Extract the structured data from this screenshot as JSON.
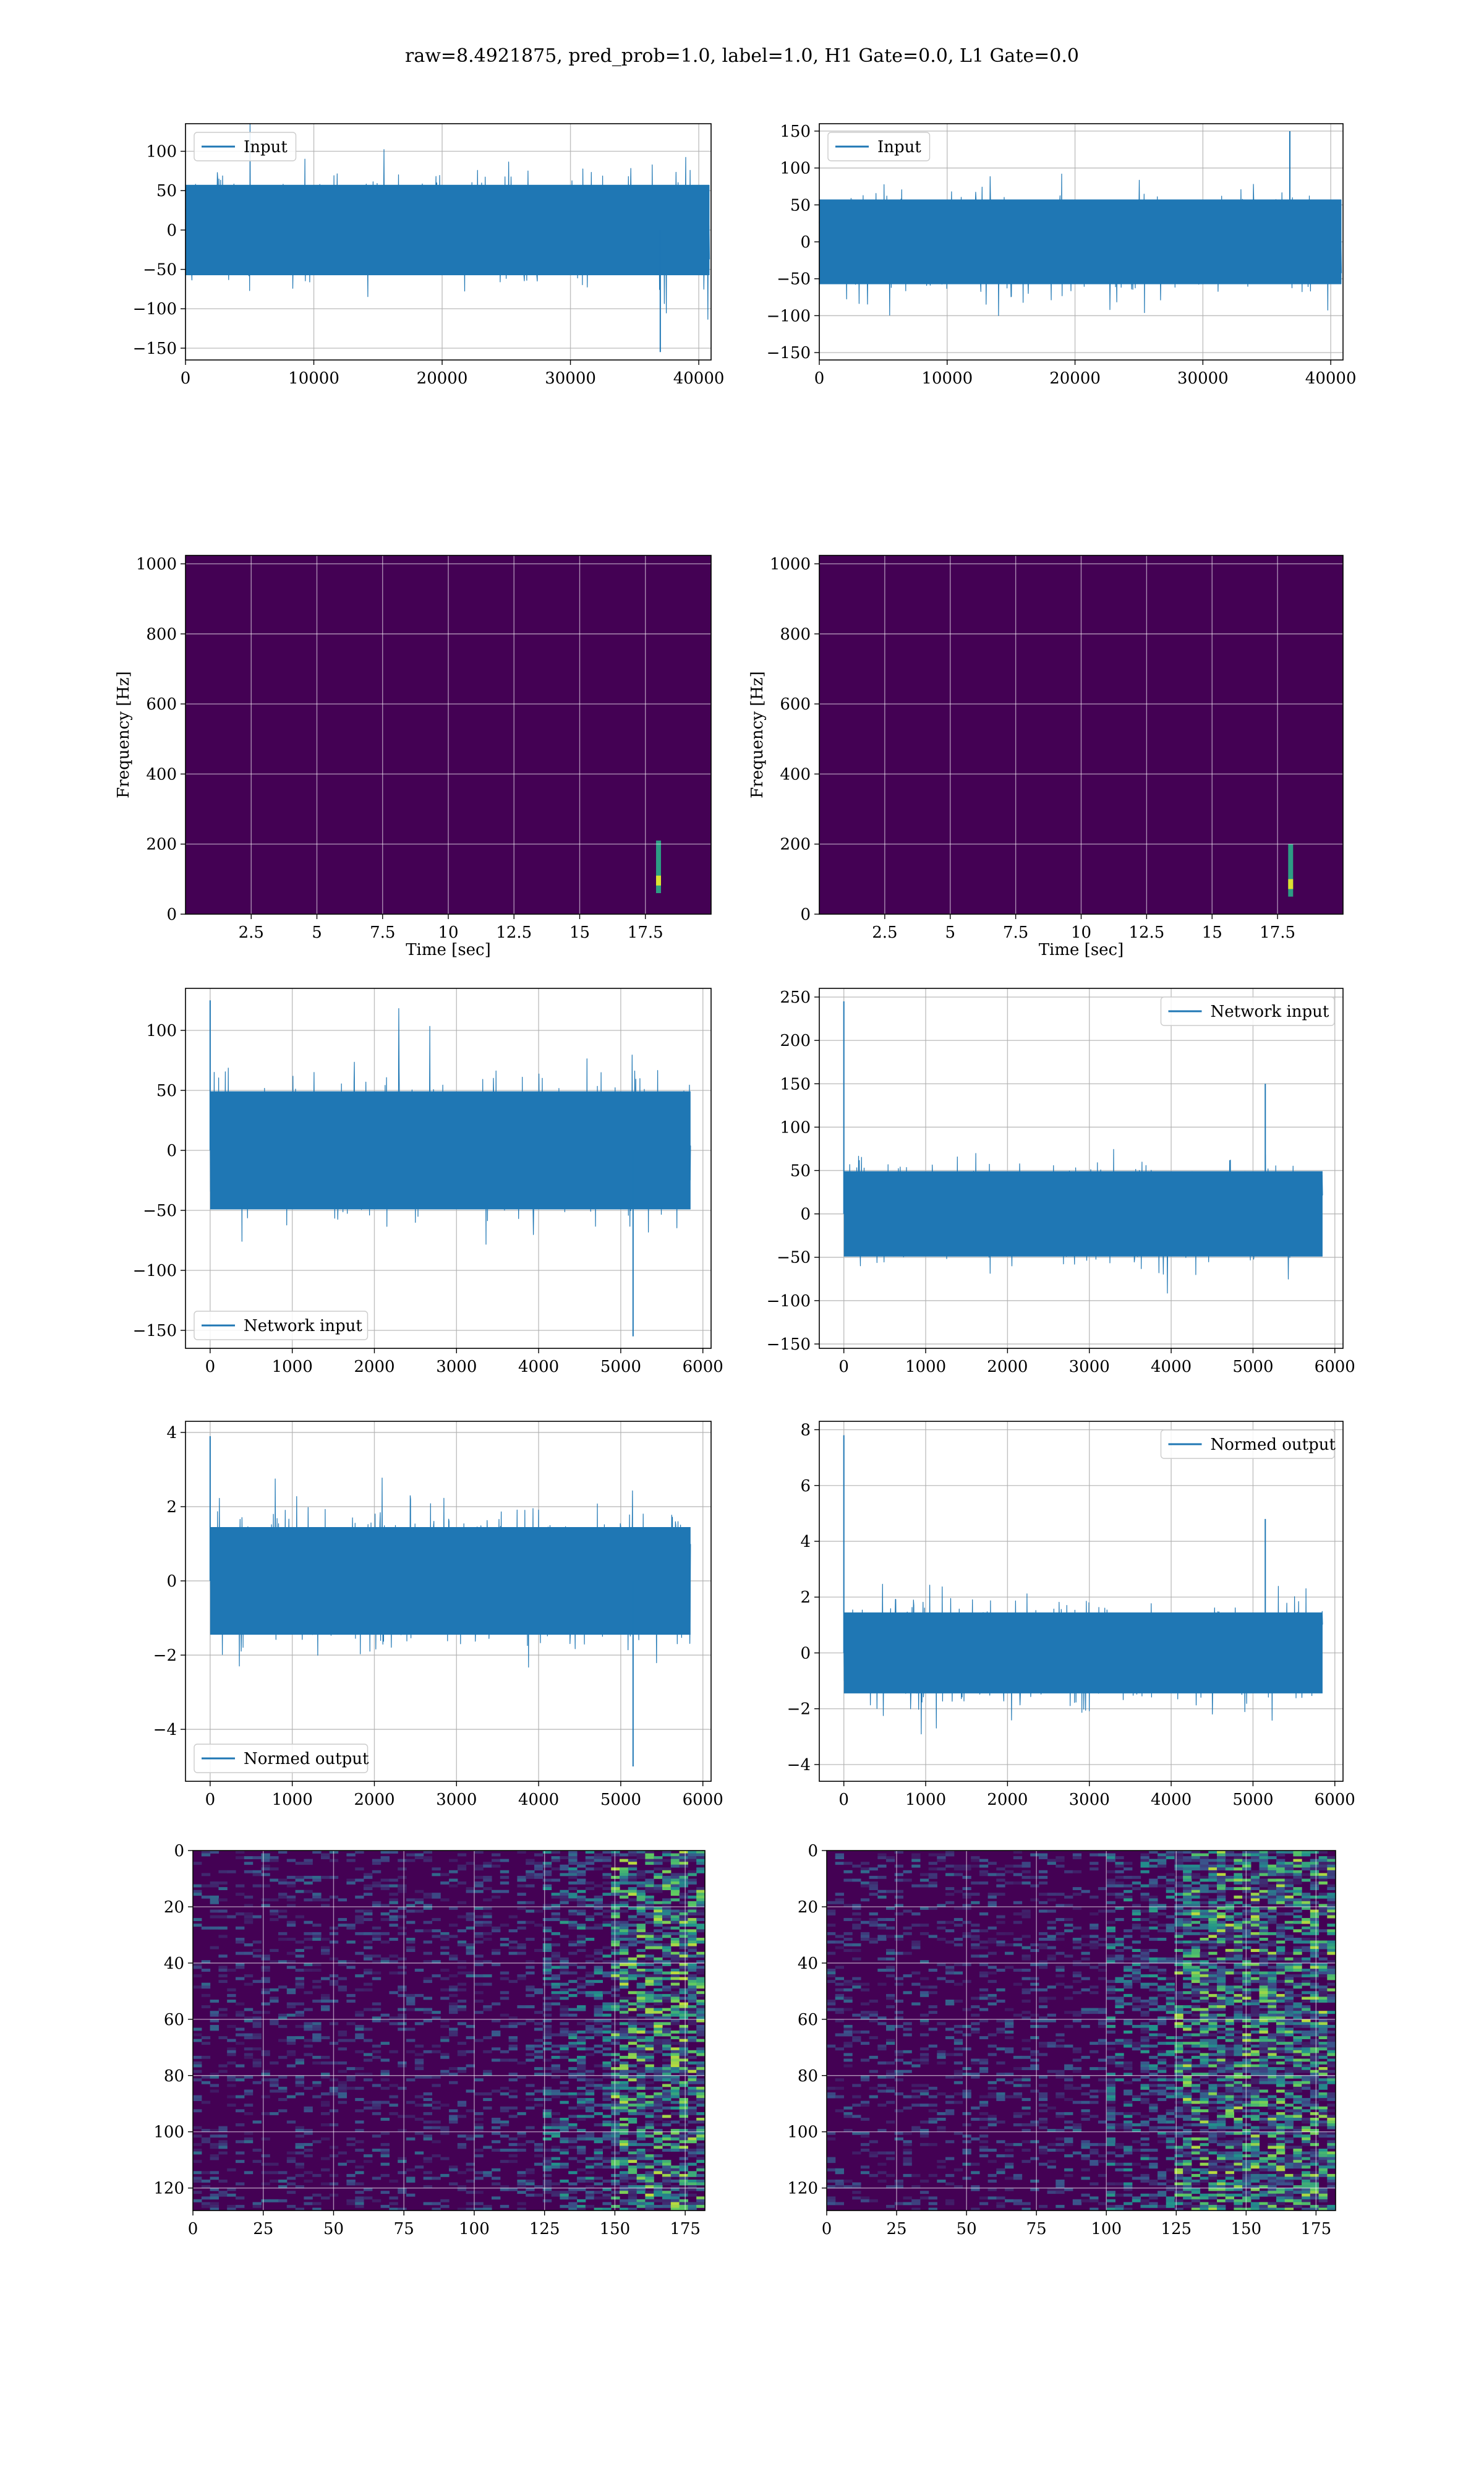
{
  "suptitle": "raw=8.4921875, pred_prob=1.0, label=1.0, H1 Gate=0.0, L1 Gate=0.0",
  "colors": {
    "line": "#1f77b4",
    "grid": "#b0b0b0",
    "viridis_low": "#440154",
    "viridis_high": "#fde725"
  },
  "chart_data": [
    {
      "id": "input_h1",
      "type": "line",
      "series": [
        {
          "name": "Input",
          "summary": "whitened strain noise, mostly within ±90, extremes ≈ +125 / −155"
        }
      ],
      "xlim": [
        0,
        40960
      ],
      "ylim": [
        -165,
        135
      ],
      "xticks": [
        0,
        10000,
        20000,
        30000,
        40000
      ],
      "yticks": [
        -150,
        -100,
        -50,
        0,
        50,
        100
      ],
      "legend_loc": "upper left",
      "grid": true,
      "spike_hint": [
        37000,
        -155
      ]
    },
    {
      "id": "input_l1",
      "type": "line",
      "series": [
        {
          "name": "Input",
          "summary": "whitened strain noise, mostly within ±90, extremes ≈ +150 / −145"
        }
      ],
      "xlim": [
        0,
        40960
      ],
      "ylim": [
        -160,
        160
      ],
      "xticks": [
        0,
        10000,
        20000,
        30000,
        40000
      ],
      "yticks": [
        -150,
        -100,
        -50,
        0,
        50,
        100,
        150
      ],
      "legend_loc": "upper left",
      "grid": true,
      "spike_hint": [
        36800,
        150
      ]
    },
    {
      "id": "spec_h1",
      "type": "heatmap",
      "xlabel": "Time [sec]",
      "ylabel": "Frequency [Hz]",
      "xlim": [
        0,
        20
      ],
      "ylim": [
        0,
        1024
      ],
      "xticks": [
        2.5,
        5.0,
        7.5,
        10.0,
        12.5,
        15.0,
        17.5
      ],
      "yticks": [
        0,
        200,
        400,
        600,
        800,
        1000
      ],
      "grid": true,
      "colormap": "viridis",
      "hotspot": {
        "t": 18.0,
        "f": 90
      }
    },
    {
      "id": "spec_l1",
      "type": "heatmap",
      "xlabel": "Time [sec]",
      "ylabel": "Frequency [Hz]",
      "xlim": [
        0,
        20
      ],
      "ylim": [
        0,
        1024
      ],
      "xticks": [
        2.5,
        5.0,
        7.5,
        10.0,
        12.5,
        15.0,
        17.5
      ],
      "yticks": [
        0,
        200,
        400,
        600,
        800,
        1000
      ],
      "grid": true,
      "colormap": "viridis",
      "hotspot": {
        "t": 18.0,
        "f": 80
      }
    },
    {
      "id": "net_h1",
      "type": "line",
      "series": [
        {
          "name": "Network input",
          "summary": "noise within ±80, initial spike ≈ 125, dip ≈ −155 near 5150"
        }
      ],
      "xlim": [
        -300,
        6100
      ],
      "ylim": [
        -165,
        135
      ],
      "xticks": [
        0,
        1000,
        2000,
        3000,
        4000,
        5000,
        6000
      ],
      "yticks": [
        -150,
        -100,
        -50,
        0,
        50,
        100
      ],
      "legend_loc": "lower left",
      "grid": true,
      "data_x_end": 5850,
      "start_spike": 125,
      "late_spike": [
        5150,
        -155
      ]
    },
    {
      "id": "net_l1",
      "type": "line",
      "series": [
        {
          "name": "Network input",
          "summary": "noise within ±80, initial spike ≈ 245, peak ≈ 150 near 5150"
        }
      ],
      "xlim": [
        -300,
        6100
      ],
      "ylim": [
        -155,
        260
      ],
      "xticks": [
        0,
        1000,
        2000,
        3000,
        4000,
        5000,
        6000
      ],
      "yticks": [
        -150,
        -100,
        -50,
        0,
        50,
        100,
        150,
        200,
        250
      ],
      "legend_loc": "upper right",
      "grid": true,
      "data_x_end": 5850,
      "start_spike": 245,
      "late_spike": [
        5150,
        150
      ]
    },
    {
      "id": "norm_h1",
      "type": "line",
      "series": [
        {
          "name": "Normed output",
          "summary": "normalized noise within ±2.5, initial ≈ 3.9, dip ≈ −5 near 5150"
        }
      ],
      "xlim": [
        -300,
        6100
      ],
      "ylim": [
        -5.4,
        4.3
      ],
      "xticks": [
        0,
        1000,
        2000,
        3000,
        4000,
        5000,
        6000
      ],
      "yticks": [
        -4,
        -2,
        0,
        2,
        4
      ],
      "legend_loc": "lower left",
      "grid": true,
      "data_x_end": 5850,
      "start_spike": 3.9,
      "late_spike": [
        5150,
        -5.0
      ]
    },
    {
      "id": "norm_l1",
      "type": "line",
      "series": [
        {
          "name": "Normed output",
          "summary": "normalized noise within ±2.5, initial ≈ 7.8, peak ≈ 4.8 near 5150"
        }
      ],
      "xlim": [
        -300,
        6100
      ],
      "ylim": [
        -4.6,
        8.3
      ],
      "xticks": [
        0,
        1000,
        2000,
        3000,
        4000,
        5000,
        6000
      ],
      "yticks": [
        -4,
        -2,
        0,
        2,
        4,
        6,
        8
      ],
      "legend_loc": "upper right",
      "grid": true,
      "data_x_end": 5850,
      "start_spike": 7.8,
      "late_spike": [
        5150,
        4.8
      ]
    },
    {
      "id": "feat_h1",
      "type": "heatmap",
      "xlim": [
        0,
        182
      ],
      "ylim": [
        128,
        0
      ],
      "xticks": [
        0,
        25,
        50,
        75,
        100,
        125,
        150,
        175
      ],
      "yticks": [
        0,
        20,
        40,
        60,
        80,
        100,
        120
      ],
      "grid": true,
      "colormap": "viridis",
      "activity_onset_x": 150
    },
    {
      "id": "feat_l1",
      "type": "heatmap",
      "xlim": [
        0,
        182
      ],
      "ylim": [
        128,
        0
      ],
      "xticks": [
        0,
        25,
        50,
        75,
        100,
        125,
        150,
        175
      ],
      "yticks": [
        0,
        20,
        40,
        60,
        80,
        100,
        120
      ],
      "grid": true,
      "colormap": "viridis",
      "activity_onset_x": 125
    }
  ]
}
